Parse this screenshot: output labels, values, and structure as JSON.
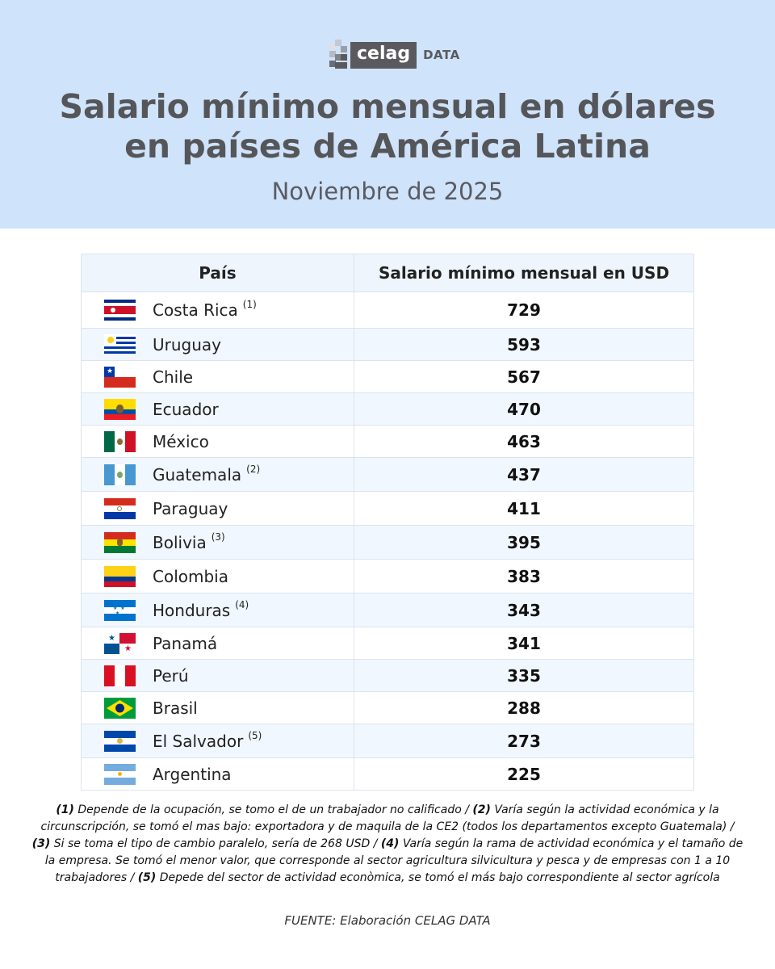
{
  "logo": {
    "brand": "celag",
    "suffix": "DATA"
  },
  "header": {
    "title_line1": "Salario mínimo mensual en dólares",
    "title_line2": "en países de América Latina",
    "subtitle": "Noviembre de 2025"
  },
  "table": {
    "columns": [
      "País",
      "Salario mínimo mensual en USD"
    ],
    "rows": [
      {
        "country": "Costa Rica",
        "note": "(1)",
        "value": "729",
        "flag": "costa-rica-flag-icon"
      },
      {
        "country": "Uruguay",
        "note": "",
        "value": "593",
        "flag": "uruguay-flag-icon"
      },
      {
        "country": "Chile",
        "note": "",
        "value": "567",
        "flag": "chile-flag-icon"
      },
      {
        "country": "Ecuador",
        "note": "",
        "value": "470",
        "flag": "ecuador-flag-icon"
      },
      {
        "country": "México",
        "note": "",
        "value": "463",
        "flag": "mexico-flag-icon"
      },
      {
        "country": "Guatemala",
        "note": "(2)",
        "value": "437",
        "flag": "guatemala-flag-icon"
      },
      {
        "country": "Paraguay",
        "note": "",
        "value": "411",
        "flag": "paraguay-flag-icon"
      },
      {
        "country": "Bolivia",
        "note": "(3)",
        "value": "395",
        "flag": "bolivia-flag-icon"
      },
      {
        "country": "Colombia",
        "note": "",
        "value": "383",
        "flag": "colombia-flag-icon"
      },
      {
        "country": "Honduras",
        "note": "(4)",
        "value": "343",
        "flag": "honduras-flag-icon"
      },
      {
        "country": "Panamá",
        "note": "",
        "value": "341",
        "flag": "panama-flag-icon"
      },
      {
        "country": "Perú",
        "note": "",
        "value": "335",
        "flag": "peru-flag-icon"
      },
      {
        "country": "Brasil",
        "note": "",
        "value": "288",
        "flag": "brazil-flag-icon"
      },
      {
        "country": "El Salvador",
        "note": "(5)",
        "value": "273",
        "flag": "el-salvador-flag-icon"
      },
      {
        "country": "Argentina",
        "note": "",
        "value": "225",
        "flag": "argentina-flag-icon"
      }
    ]
  },
  "footnotes": [
    {
      "mark": "(1)",
      "text": " Depende de la ocupación, se tomo el de un trabajador no calificado / "
    },
    {
      "mark": "(2)",
      "text": " Varía según la actividad económica y la circunscripción, se tomó el mas bajo: exportadora y de maquila de la CE2 (todos los departamentos excepto Guatemala) / "
    },
    {
      "mark": "(3)",
      "text": " Si se toma el tipo de cambio paralelo, sería de 268 USD / "
    },
    {
      "mark": "(4)",
      "text": " Varía según la rama de actividad económica y el tamaño de la empresa. Se tomó el menor valor, que corresponde al sector agricultura silvicultura y pesca y de empresas con 1 a 10 trabajadores / "
    },
    {
      "mark": "(5)",
      "text": " Depede del sector de actividad econòmica, se tomó el más bajo correspondiente al sector agrícola"
    }
  ],
  "source": "FUENTE: Elaboración CELAG DATA",
  "colors": {
    "header_bg": "#cfe3fb",
    "title": "#55565a",
    "logo_box": "#5a5a5e"
  }
}
